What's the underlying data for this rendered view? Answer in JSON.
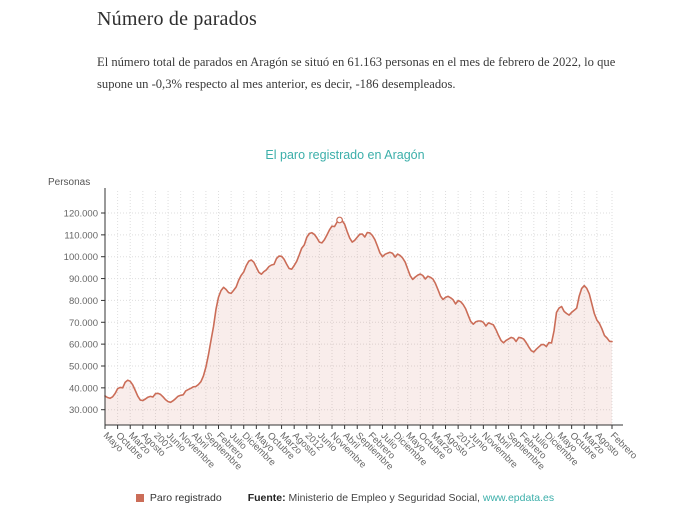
{
  "page": {
    "title": "Número de parados",
    "description_line1": "El número total de parados en Aragón se situó en 61.163 personas en el mes de febrero de 2022, lo que",
    "description_line2": "supone un -0,3% respecto al mes anterior, es decir, -186 desempleados."
  },
  "chart_data": {
    "type": "area",
    "title": "El paro registrado en Aragón",
    "ylabel": "Personas",
    "xlabel": "",
    "series_name": "Paro registrado",
    "unit": "personas",
    "frequency": "monthly",
    "x_start": "mayo 2005",
    "x_end": "febrero 2022",
    "grid": true,
    "legend_position": "bottom",
    "ylim": [
      23000,
      131000
    ],
    "y_ticks": [
      30000,
      40000,
      50000,
      60000,
      70000,
      80000,
      90000,
      100000,
      110000,
      120000
    ],
    "y_tick_labels": [
      "30.000",
      "40.000",
      "50.000",
      "60.000",
      "70.000",
      "80.000",
      "90.000",
      "100.000",
      "110.000",
      "120.000"
    ],
    "x_tick_labels": [
      "Mayo",
      "Octubre",
      "Marzo",
      "Agosto",
      "2007",
      "Junio",
      "Noviembre",
      "Abril",
      "Septiembre",
      "Febrero",
      "Julio",
      "Diciembre",
      "Mayo",
      "Octubre",
      "Marzo",
      "Agosto",
      "2012",
      "Junio",
      "Noviembre",
      "Abril",
      "Septiembre",
      "Febrero",
      "Julio",
      "Diciembre",
      "Mayo",
      "Octubre",
      "Marzo",
      "Agosto",
      "2017",
      "Junio",
      "Noviembre",
      "Abril",
      "Septiembre",
      "Febrero",
      "Julio",
      "Diciembre",
      "Mayo",
      "Octubre",
      "Marzo",
      "Agosto",
      "Febrero"
    ],
    "x_tick_month_indices": [
      0,
      5,
      10,
      15,
      20,
      25,
      30,
      35,
      40,
      45,
      50,
      55,
      60,
      65,
      70,
      75,
      80,
      85,
      90,
      95,
      100,
      105,
      110,
      115,
      120,
      125,
      130,
      135,
      140,
      145,
      150,
      155,
      160,
      165,
      170,
      175,
      180,
      185,
      190,
      195,
      201
    ],
    "values": [
      36300,
      35600,
      35200,
      35900,
      37400,
      39600,
      40200,
      40000,
      42600,
      43500,
      43000,
      41400,
      38800,
      36200,
      34400,
      34200,
      34900,
      35700,
      36100,
      35800,
      37300,
      37500,
      37000,
      35900,
      34600,
      33700,
      33400,
      34100,
      35100,
      36200,
      36600,
      36800,
      38600,
      39200,
      39800,
      40500,
      40600,
      41500,
      42800,
      45400,
      49500,
      55000,
      61500,
      68000,
      76000,
      81500,
      84500,
      86000,
      85000,
      83600,
      83200,
      84600,
      86200,
      89300,
      91500,
      93000,
      96000,
      98000,
      98500,
      97500,
      95200,
      92800,
      92000,
      93200,
      94000,
      95500,
      96200,
      96500,
      99200,
      100300,
      100200,
      98800,
      96600,
      94600,
      94300,
      96000,
      97900,
      100800,
      103900,
      105400,
      108900,
      110600,
      111000,
      110200,
      108600,
      106700,
      106300,
      107800,
      110000,
      112300,
      114000,
      113800,
      115900,
      116800,
      116500,
      114900,
      111600,
      108500,
      106700,
      107500,
      108900,
      110300,
      110400,
      109000,
      111100,
      110900,
      109700,
      107800,
      104900,
      101800,
      100000,
      101100,
      101600,
      102000,
      101500,
      99800,
      101200,
      100600,
      99400,
      97500,
      94400,
      91300,
      89600,
      90700,
      91600,
      92100,
      91400,
      89800,
      91100,
      90600,
      89800,
      87800,
      84900,
      82000,
      80400,
      81400,
      81900,
      81200,
      80300,
      78400,
      79900,
      79400,
      78100,
      76100,
      73200,
      70400,
      69100,
      70200,
      70600,
      70600,
      70000,
      68300,
      69700,
      69300,
      68800,
      66600,
      64000,
      61700,
      60600,
      61700,
      62400,
      63100,
      62700,
      61200,
      63100,
      62900,
      62300,
      60700,
      58700,
      57000,
      56400,
      57700,
      58800,
      59800,
      59800,
      58900,
      60700,
      60500,
      66000,
      74500,
      76500,
      77200,
      75000,
      74000,
      73300,
      74500,
      75500,
      76500,
      82000,
      85500,
      86800,
      85500,
      83000,
      78500,
      74000,
      71000,
      69500,
      67000,
      64000,
      62800,
      61300,
      61163
    ],
    "max_point": {
      "month_index": 93,
      "value": 116800
    }
  },
  "legend": {
    "series_label": "Paro registrado"
  },
  "source": {
    "label": "Fuente:",
    "text": " Ministerio de Empleo y Seguridad Social, ",
    "link": "www.epdata.es"
  },
  "colors": {
    "line": "#cb6d58",
    "area_fill": "rgba(203,109,88,0.12)",
    "grid": "#dedede",
    "axis": "#333333",
    "tick_text": "#666666",
    "chart_title": "#3cafaa",
    "link": "#3cafaa"
  }
}
